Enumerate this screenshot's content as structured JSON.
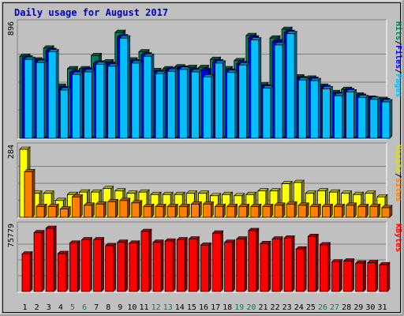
{
  "chart_data": {
    "type": "bar",
    "title": "Daily usage for August 2017",
    "categories": [
      "1",
      "2",
      "3",
      "4",
      "5",
      "6",
      "7",
      "8",
      "9",
      "10",
      "11",
      "12",
      "13",
      "14",
      "15",
      "16",
      "17",
      "18",
      "19",
      "20",
      "21",
      "22",
      "23",
      "24",
      "25",
      "26",
      "27",
      "28",
      "29",
      "30",
      "31"
    ],
    "weekend_days": [
      "5",
      "6",
      "12",
      "13",
      "19",
      "20",
      "26",
      "27"
    ],
    "panels": [
      {
        "name": "pages-files-hits",
        "ymax": 896,
        "ymax_label": "896",
        "legend": [
          {
            "text": "Hits",
            "color": "#00805C"
          },
          {
            "text": "/",
            "color": "#000000"
          },
          {
            "text": "Files",
            "color": "#0000FF"
          },
          {
            "text": "/",
            "color": "#000000"
          },
          {
            "text": "Pages",
            "color": "#00C0FF"
          }
        ],
        "series": [
          {
            "name": "Hits",
            "color": "#00805C",
            "values": [
              655,
              625,
              720,
              415,
              555,
              555,
              660,
              610,
              845,
              625,
              690,
              540,
              555,
              570,
              565,
              565,
              630,
              555,
              620,
              820,
              425,
              800,
              870,
              490,
              480,
              415,
              365,
              390,
              345,
              320,
              310
            ]
          },
          {
            "name": "Files",
            "color": "#0000FF",
            "values": [
              640,
              615,
              700,
              395,
              525,
              545,
              600,
              590,
              810,
              610,
              665,
              525,
              545,
              560,
              540,
              540,
              610,
              535,
              595,
              800,
              410,
              770,
              845,
              475,
              470,
              405,
              350,
              380,
              335,
              315,
              300
            ]
          },
          {
            "name": "Pages",
            "color": "#00C0FF",
            "values": [
              630,
              605,
              690,
              385,
              510,
              530,
              590,
              575,
              800,
              600,
              655,
              515,
              535,
              550,
              530,
              490,
              600,
              525,
              585,
              785,
              400,
              745,
              835,
              465,
              460,
              395,
              340,
              370,
              325,
              310,
              290
            ]
          }
        ]
      },
      {
        "name": "visits-sites",
        "ymax": 284,
        "ymax_label": "284",
        "legend": [
          {
            "text": "Visits",
            "color": "#E0E000"
          },
          {
            "text": "/",
            "color": "#000000"
          },
          {
            "text": "Sites",
            "color": "#FF8000"
          }
        ],
        "series": [
          {
            "name": "Visits",
            "color": "#FFFF00",
            "values": [
              284,
              100,
              100,
              70,
              95,
              105,
              105,
              120,
              110,
              100,
              105,
              95,
              95,
              95,
              100,
              100,
              90,
              95,
              90,
              95,
              110,
              110,
              140,
              145,
              100,
              110,
              105,
              100,
              95,
              100,
              85
            ]
          },
          {
            "name": "Sites",
            "color": "#FF8000",
            "values": [
              190,
              45,
              45,
              35,
              85,
              50,
              55,
              65,
              70,
              60,
              45,
              45,
              45,
              45,
              55,
              55,
              45,
              45,
              45,
              45,
              45,
              50,
              55,
              50,
              45,
              45,
              45,
              50,
              45,
              45,
              40
            ]
          }
        ]
      },
      {
        "name": "kbytes",
        "ymax": 75779,
        "ymax_label": "75779",
        "legend": [
          {
            "text": "KBytes",
            "color": "#FF0000"
          }
        ],
        "series": [
          {
            "name": "KBytes",
            "color": "#FF0000",
            "values": [
              45000,
              70500,
              75779,
              45500,
              58000,
              62000,
              62000,
              55000,
              59000,
              58000,
              72000,
              59000,
              60500,
              62000,
              63000,
              55500,
              70000,
              59000,
              63000,
              73000,
              57500,
              63000,
              64000,
              51000,
              66000,
              56000,
              35500,
              36500,
              34000,
              34500,
              32000
            ]
          }
        ]
      }
    ]
  }
}
